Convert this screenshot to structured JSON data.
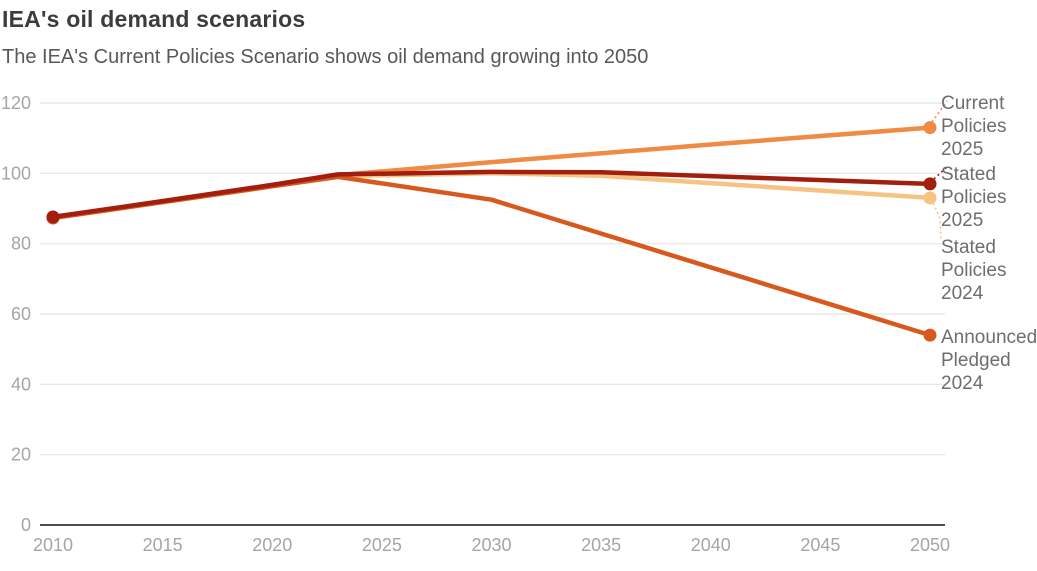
{
  "header": {
    "title": "IEA's oil demand scenarios",
    "subtitle": "The IEA's Current Policies Scenario shows oil demand growing into 2050"
  },
  "chart_data": {
    "type": "line",
    "title": "IEA's oil demand scenarios",
    "subtitle": "The IEA's Current Policies Scenario shows oil demand growing into 2050",
    "xlabel": "",
    "ylabel": "",
    "x_ticks": [
      "2010",
      "2015",
      "2020",
      "2025",
      "2030",
      "2035",
      "2040",
      "2045",
      "2050"
    ],
    "y_ticks": [
      "0",
      "20",
      "40",
      "60",
      "80",
      "100",
      "120"
    ],
    "xlim": [
      2010,
      2050
    ],
    "ylim": [
      0,
      120
    ],
    "grid": "horizontal",
    "legend_position": "right-edge-annotations",
    "colors": {
      "grid_line": "#e4e4e4",
      "axis_line": "#4d4d4d",
      "tick_label": "#a5a5a5",
      "annotation_text": "#6e6e6e"
    },
    "series": [
      {
        "name": "Stated Policies 2024",
        "label_lines": [
          "Stated",
          "Policies",
          "2024"
        ],
        "color": "#f6c383",
        "points": [
          {
            "x": 2010,
            "y": 87.4
          },
          {
            "x": 2015,
            "y": 92.0
          },
          {
            "x": 2020,
            "y": 96.5
          },
          {
            "x": 2023,
            "y": 99.2
          },
          {
            "x": 2030,
            "y": 100.0
          },
          {
            "x": 2035,
            "y": 99.3
          },
          {
            "x": 2050,
            "y": 93.0
          }
        ]
      },
      {
        "name": "Current Policies 2025",
        "label_lines": [
          "Current",
          "Policies",
          "2025"
        ],
        "color": "#ef8b42",
        "points": [
          {
            "x": 2010,
            "y": 87.5
          },
          {
            "x": 2015,
            "y": 92.1
          },
          {
            "x": 2020,
            "y": 96.7
          },
          {
            "x": 2023,
            "y": 99.5
          },
          {
            "x": 2030,
            "y": 103.2
          },
          {
            "x": 2040,
            "y": 108.2
          },
          {
            "x": 2050,
            "y": 113.0
          }
        ]
      },
      {
        "name": "Announced Pledged 2024",
        "label_lines": [
          "Announced",
          "Pledged",
          "2024"
        ],
        "color": "#d8591d",
        "points": [
          {
            "x": 2010,
            "y": 87.3
          },
          {
            "x": 2015,
            "y": 91.8
          },
          {
            "x": 2020,
            "y": 96.3
          },
          {
            "x": 2023,
            "y": 99.0
          },
          {
            "x": 2030,
            "y": 92.5
          },
          {
            "x": 2050,
            "y": 54.0
          }
        ]
      },
      {
        "name": "Stated Policies 2025",
        "label_lines": [
          "Stated",
          "Policies",
          "2025"
        ],
        "color": "#a21e0f",
        "points": [
          {
            "x": 2010,
            "y": 87.6
          },
          {
            "x": 2015,
            "y": 92.1
          },
          {
            "x": 2020,
            "y": 96.7
          },
          {
            "x": 2023,
            "y": 99.7
          },
          {
            "x": 2030,
            "y": 100.4
          },
          {
            "x": 2035,
            "y": 100.3
          },
          {
            "x": 2050,
            "y": 97.0
          }
        ]
      }
    ]
  }
}
